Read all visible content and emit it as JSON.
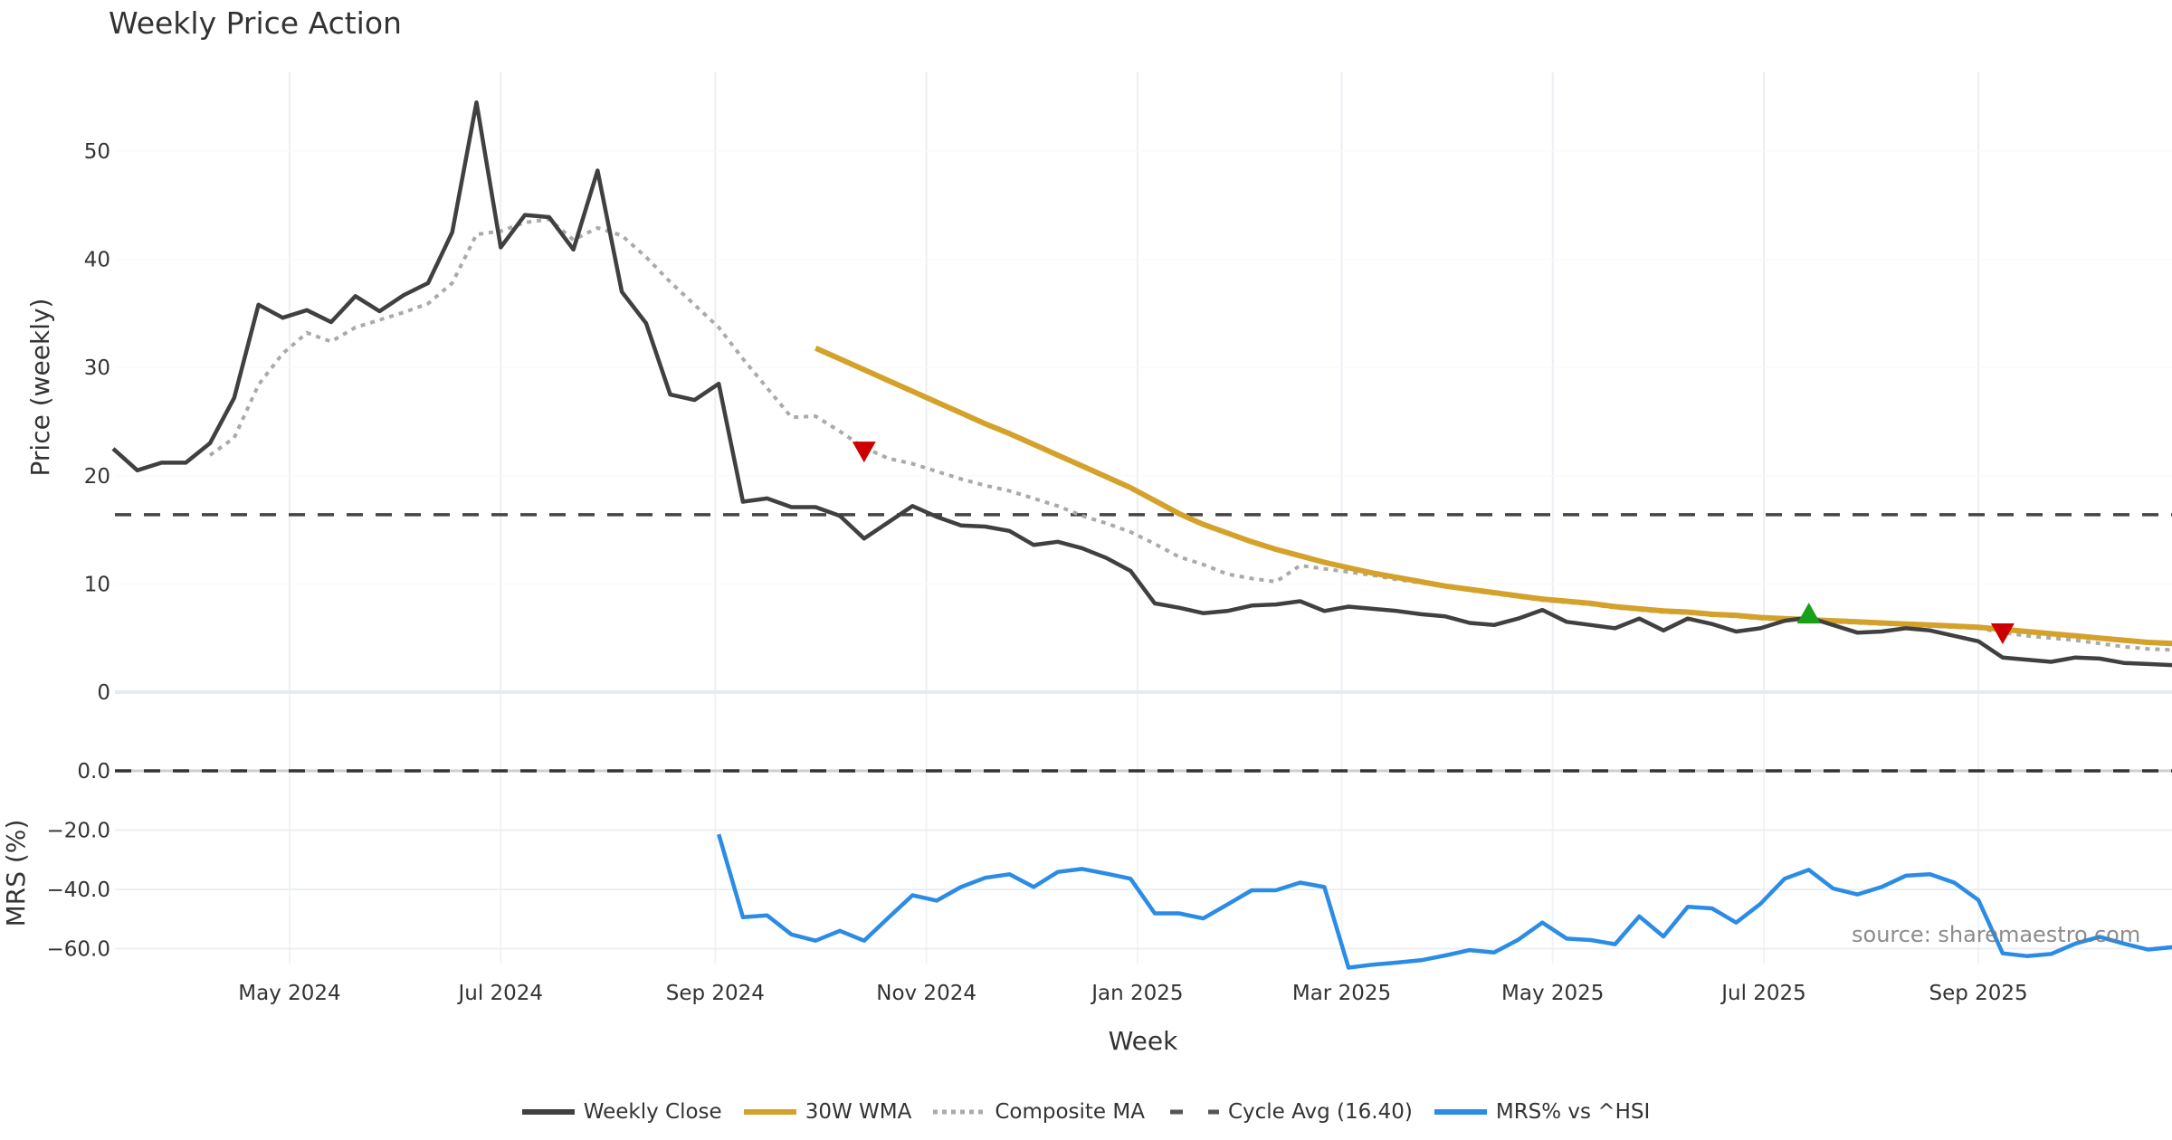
{
  "chart_data": {
    "type": "line",
    "title": "Weekly Price Action",
    "xlabel": "Week",
    "x_start": "2024-03-11",
    "x_step_days": 7,
    "x_ticks": [
      {
        "date": "2024-05-01",
        "label": "May 2024"
      },
      {
        "date": "2024-07-01",
        "label": "Jul 2024"
      },
      {
        "date": "2024-09-01",
        "label": "Sep 2024"
      },
      {
        "date": "2024-11-01",
        "label": "Nov 2024"
      },
      {
        "date": "2025-01-01",
        "label": "Jan 2025"
      },
      {
        "date": "2025-03-01",
        "label": "Mar 2025"
      },
      {
        "date": "2025-05-01",
        "label": "May 2025"
      },
      {
        "date": "2025-07-01",
        "label": "Jul 2025"
      },
      {
        "date": "2025-09-01",
        "label": "Sep 2025"
      }
    ],
    "panels": {
      "price": {
        "ylabel": "Price (weekly)",
        "ylim": [
          0,
          57.3
        ],
        "y_ticks": [
          0,
          10,
          20,
          30,
          40,
          50
        ],
        "y_tick_labels": [
          "0",
          "10",
          "20",
          "30",
          "40",
          "50"
        ],
        "grid": true
      },
      "mrs": {
        "ylabel": "MRS (%)",
        "ylim": [
          -70,
          0
        ],
        "y_ticks": [
          0,
          -20,
          -40,
          -60
        ],
        "y_tick_labels": [
          "0.0",
          "−20.0",
          "−40.0",
          "−60.0"
        ],
        "grid": true
      }
    },
    "series": [
      {
        "name": "Weekly Close",
        "panel": "price",
        "color": "#404040",
        "style": "solid",
        "start_index": 0,
        "values": [
          22.5,
          20.5,
          21.2,
          21.2,
          23.0,
          27.2,
          35.8,
          34.6,
          35.3,
          34.2,
          36.6,
          35.2,
          36.7,
          37.8,
          42.5,
          54.5,
          41.1,
          44.1,
          43.9,
          40.9,
          48.2,
          37.0,
          34.1,
          27.5,
          27.0,
          28.5,
          17.6,
          17.9,
          17.1,
          17.1,
          16.3,
          14.2,
          15.7,
          17.2,
          16.2,
          15.4,
          15.3,
          14.9,
          13.6,
          13.9,
          13.3,
          12.4,
          11.2,
          8.2,
          7.8,
          7.3,
          7.5,
          8.0,
          8.1,
          8.4,
          7.5,
          7.9,
          7.7,
          7.5,
          7.2,
          7.0,
          6.4,
          6.2,
          6.8,
          7.6,
          6.5,
          6.2,
          5.9,
          6.8,
          5.7,
          6.8,
          6.3,
          5.6,
          5.9,
          6.6,
          6.9,
          6.2,
          5.5,
          5.6,
          5.9,
          5.7,
          5.2,
          4.7,
          3.2,
          3.0,
          2.8,
          3.2,
          3.1,
          2.7,
          2.6,
          2.5
        ]
      },
      {
        "name": "30W WMA",
        "panel": "price",
        "color": "#d4a12a",
        "style": "solid",
        "start_index": 29,
        "values": [
          31.8,
          30.8,
          29.8,
          28.8,
          27.8,
          26.8,
          25.8,
          24.8,
          23.9,
          22.9,
          21.9,
          20.9,
          19.9,
          18.9,
          17.7,
          16.5,
          15.5,
          14.7,
          13.9,
          13.2,
          12.6,
          12.0,
          11.5,
          11.0,
          10.6,
          10.2,
          9.8,
          9.5,
          9.2,
          8.9,
          8.6,
          8.4,
          8.2,
          7.9,
          7.7,
          7.5,
          7.4,
          7.2,
          7.1,
          6.9,
          6.8,
          6.7,
          6.6,
          6.5,
          6.4,
          6.3,
          6.2,
          6.1,
          6.0,
          5.8,
          5.6,
          5.4,
          5.2,
          5.0,
          4.8,
          4.6,
          4.5
        ]
      },
      {
        "name": "Composite MA",
        "panel": "price",
        "color": "#aaaaaa",
        "style": "dotted",
        "start_index": 4,
        "values": [
          21.9,
          23.5,
          28.4,
          31.3,
          33.2,
          32.4,
          33.7,
          34.4,
          35.1,
          35.9,
          37.8,
          42.3,
          42.6,
          43.4,
          43.7,
          41.8,
          42.9,
          42.2,
          40.2,
          37.9,
          35.8,
          33.7,
          30.8,
          28.1,
          25.4,
          25.5,
          24.1,
          22.6,
          21.6,
          21.1,
          20.4,
          19.7,
          19.1,
          18.6,
          17.9,
          17.2,
          16.3,
          15.6,
          14.8,
          13.7,
          12.5,
          11.8,
          10.9,
          10.5,
          10.2,
          11.7,
          11.4,
          11.1,
          10.8,
          10.4,
          10.1,
          9.8,
          9.4,
          9.1,
          8.8,
          8.5,
          8.3,
          8.1,
          7.8,
          7.6,
          7.4,
          7.3,
          7.1,
          7.0,
          6.8,
          6.7,
          6.6,
          6.5,
          6.4,
          6.3,
          6.2,
          6.1,
          6.0,
          5.9,
          5.5,
          5.2,
          5.0,
          4.8,
          4.5,
          4.2,
          4.0,
          3.9
        ]
      },
      {
        "name": "Cycle Avg (16.40)",
        "panel": "price",
        "color": "#444444",
        "style": "dashed",
        "constant": 16.4
      },
      {
        "name": "MRS% vs ^HSI",
        "panel": "mrs",
        "color": "#2b8ce6",
        "style": "solid",
        "start_index": 25,
        "values": [
          -21.4,
          -49.4,
          -48.8,
          -55.2,
          -57.3,
          -54.0,
          -57.3,
          -49.6,
          -42.0,
          -43.8,
          -39.2,
          -36.1,
          -34.9,
          -39.2,
          -34.1,
          -33.1,
          -34.7,
          -36.4,
          -48.1,
          -48.1,
          -49.8,
          -45.1,
          -40.3,
          -40.3,
          -37.7,
          -39.2,
          -66.4,
          -65.4,
          -64.7,
          -63.9,
          -62.3,
          -60.5,
          -61.3,
          -57.0,
          -51.2,
          -56.6,
          -57.1,
          -58.5,
          -49.1,
          -55.9,
          -45.9,
          -46.4,
          -51.2,
          -44.9,
          -36.4,
          -33.4,
          -39.7,
          -41.7,
          -39.2,
          -35.4,
          -34.9,
          -37.7,
          -43.6,
          -61.6,
          -62.5,
          -61.8,
          -58.3,
          -56.0,
          -58.3,
          -60.3,
          -59.5
        ]
      },
      {
        "name": "MRS zero",
        "panel": "mrs",
        "color": "#333333",
        "style": "dashed",
        "constant": 0,
        "in_legend": false
      }
    ],
    "signals": [
      {
        "type": "sell",
        "index": 31,
        "price": 22.4,
        "color": "#cc0000"
      },
      {
        "type": "buy",
        "index": 70,
        "price": 7.1,
        "color": "#18a018"
      },
      {
        "type": "sell",
        "index": 78,
        "price": 5.6,
        "color": "#cc0000"
      }
    ],
    "legend": {
      "position": "bottom-center",
      "entries": [
        "Weekly Close",
        "30W WMA",
        "Composite MA",
        "Cycle Avg (16.40)",
        "MRS% vs ^HSI"
      ]
    },
    "annotation": "source: sharemaestro.com"
  }
}
